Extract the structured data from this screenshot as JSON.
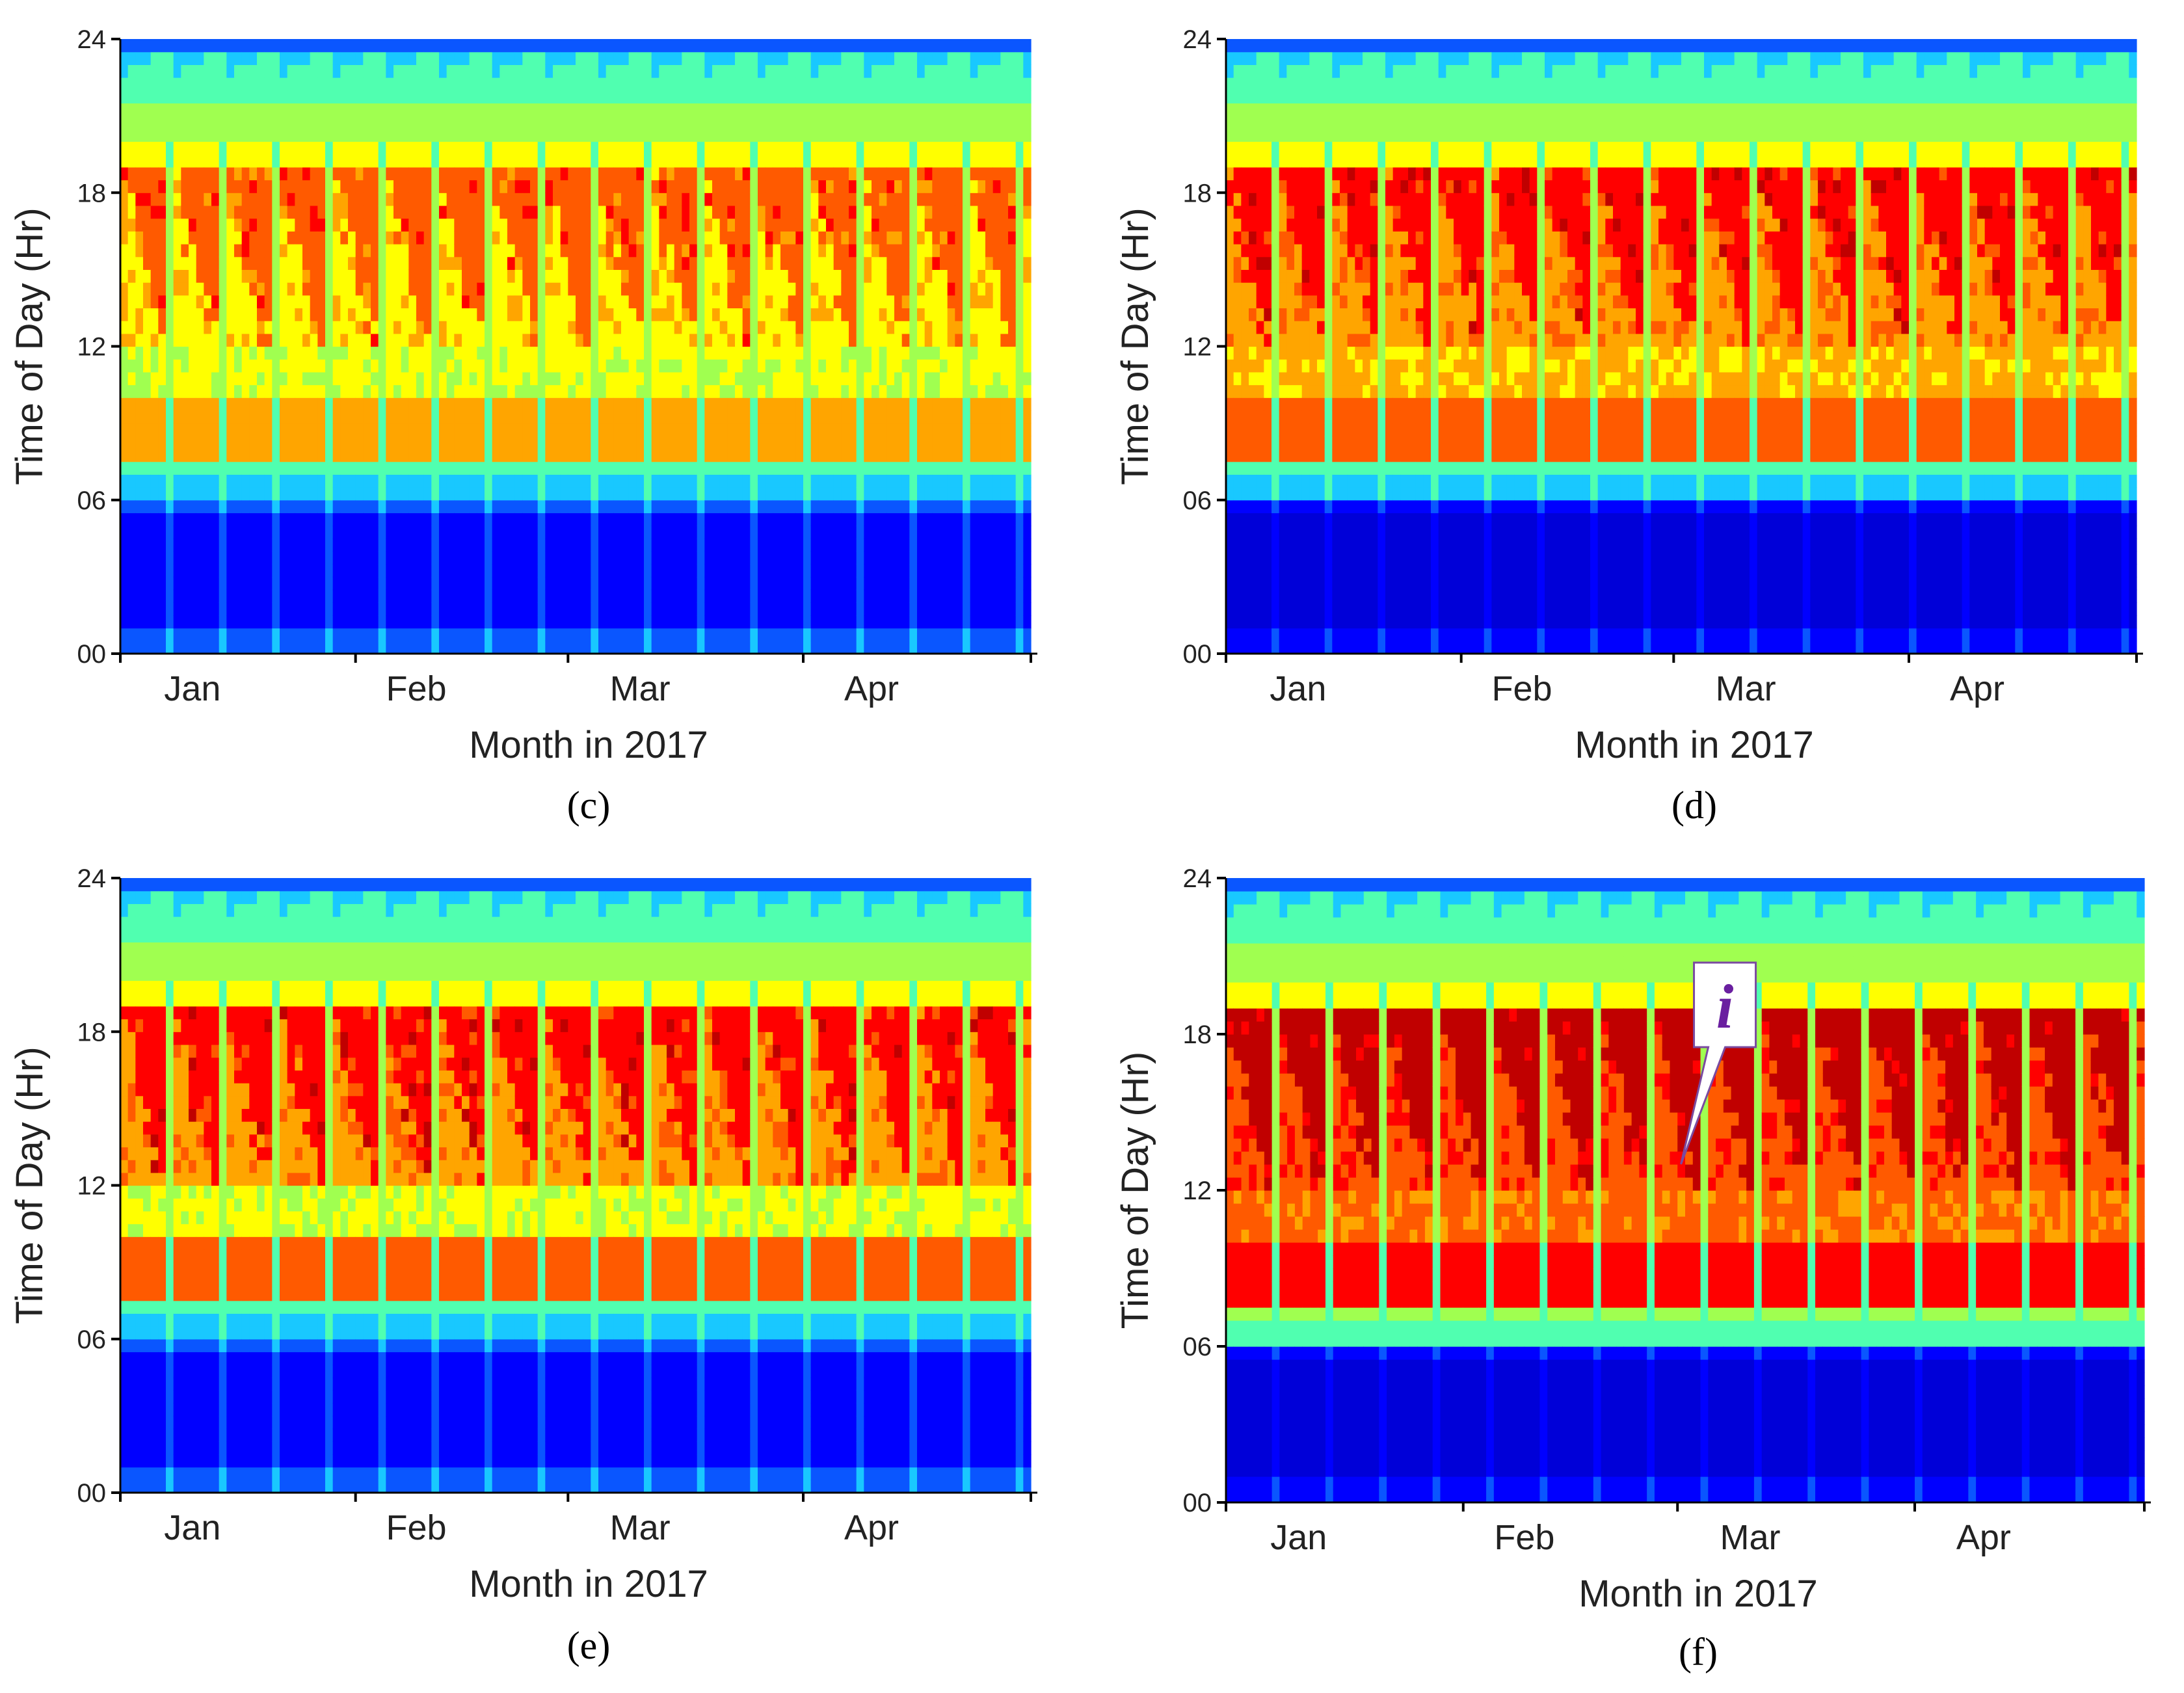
{
  "colors": {
    "scale": [
      "#00008c",
      "#0000d8",
      "#0000ff",
      "#0a56ff",
      "#19c8ff",
      "#50ffb0",
      "#a0ff50",
      "#ffff00",
      "#ffa500",
      "#ff5a00",
      "#ff0000",
      "#c00000"
    ],
    "callout_text": "#6a1fa0",
    "axis": "#000000"
  },
  "chart_data": [
    {
      "id": "c",
      "panel_label": "(c)",
      "type": "heatmap",
      "title": "",
      "xlabel": "Month in 2017",
      "ylabel": "Time of Day (Hr)",
      "ylim": [
        0,
        24
      ],
      "yticks": [
        "00",
        "06",
        "12",
        "18",
        "24"
      ],
      "xticks": [
        "Jan",
        "Feb",
        "Mar",
        "Apr"
      ],
      "days": 120,
      "bands_hour_to_level": [
        {
          "from": 0,
          "to": 6,
          "level": "night-blue"
        },
        {
          "from": 6,
          "to": 7.5,
          "level": "dawn-cyan"
        },
        {
          "from": 7.5,
          "to": 10,
          "level": "morning-orange"
        },
        {
          "from": 10,
          "to": 12,
          "level": "yellow-green"
        },
        {
          "from": 12,
          "to": 19,
          "level": "afternoon-orange-yellow"
        },
        {
          "from": 19,
          "to": 24,
          "level": "evening-green-cyan-blue"
        }
      ],
      "levels": {
        "night": 2,
        "dawn": 4,
        "morning": 8,
        "midday": 7,
        "afternoon_peak": 9,
        "afternoon_base": 7,
        "evening": 5
      },
      "callout": null
    },
    {
      "id": "d",
      "panel_label": "(d)",
      "type": "heatmap",
      "title": "",
      "xlabel": "Month in 2017",
      "ylabel": "Time of Day (Hr)",
      "ylim": [
        0,
        24
      ],
      "yticks": [
        "00",
        "06",
        "12",
        "18",
        "24"
      ],
      "xticks": [
        "Jan",
        "Feb",
        "Mar",
        "Apr"
      ],
      "days": 120,
      "levels": {
        "night": 1,
        "dawn": 4,
        "morning": 9,
        "midday": 8,
        "afternoon_peak": 10,
        "afternoon_base": 8,
        "evening": 6
      },
      "callout": null
    },
    {
      "id": "e",
      "panel_label": "(e)",
      "type": "heatmap",
      "title": "",
      "xlabel": "Month in 2017",
      "ylabel": "Time of Day (Hr)",
      "ylim": [
        0,
        24
      ],
      "yticks": [
        "00",
        "06",
        "12",
        "18",
        "24"
      ],
      "xticks": [
        "Jan",
        "Feb",
        "Mar",
        "Apr"
      ],
      "days": 120,
      "levels": {
        "night": 2,
        "dawn": 4,
        "morning": 9,
        "midday": 7,
        "afternoon_peak": 10,
        "afternoon_base": 8,
        "evening": 6
      },
      "callout": null
    },
    {
      "id": "f",
      "panel_label": "(f)",
      "type": "heatmap",
      "title": "",
      "xlabel": "Month in 2017",
      "ylabel": "Time of Day (Hr)",
      "ylim": [
        0,
        24
      ],
      "yticks": [
        "00",
        "06",
        "12",
        "18",
        "24"
      ],
      "xticks": [
        "Jan",
        "Feb",
        "Mar",
        "Apr"
      ],
      "days": 120,
      "levels": {
        "night": 1,
        "dawn": 5,
        "morning": 10,
        "midday": 9,
        "afternoon_peak": 11,
        "afternoon_base": 9,
        "evening": 6
      },
      "callout": {
        "text": "i",
        "day": 62,
        "hour": 13
      }
    }
  ]
}
